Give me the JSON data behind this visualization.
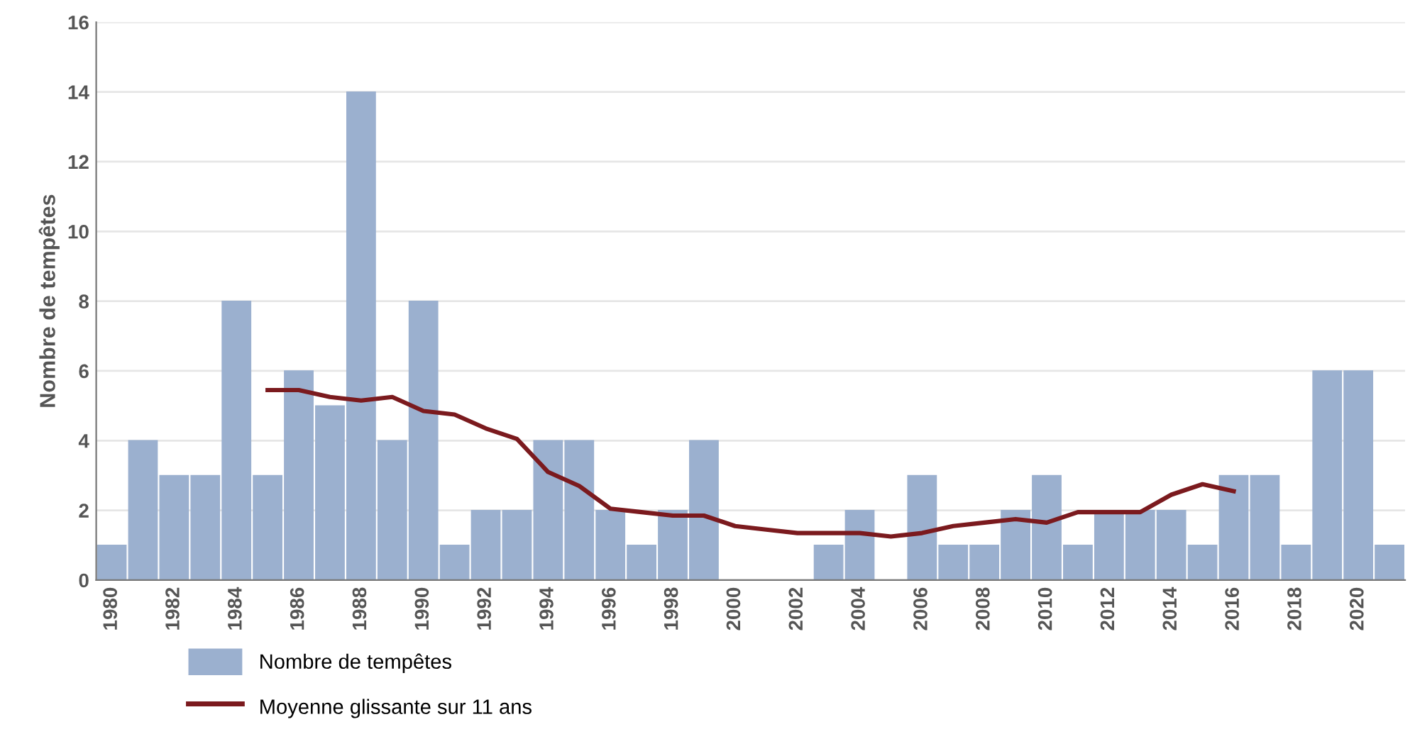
{
  "chart_data": {
    "type": "bar",
    "ylabel": "Nombre de tempêtes",
    "categories": [
      "1980",
      null,
      "1982",
      null,
      "1984",
      null,
      "1986",
      null,
      "1988",
      null,
      "1990",
      null,
      "1992",
      null,
      "1994",
      null,
      "1996",
      null,
      "1998",
      null,
      "2000",
      null,
      "2002",
      null,
      "2004",
      null,
      "2006",
      null,
      "2008",
      null,
      "2010",
      null,
      "2012",
      null,
      "2014",
      null,
      "2016",
      null,
      "2018",
      null,
      "2020",
      null
    ],
    "series": [
      {
        "name": "Nombre de tempêtes",
        "color": "#9bb0cf",
        "values": [
          1,
          4,
          3,
          3,
          8,
          3,
          6,
          5,
          14,
          4,
          8,
          1,
          2,
          2,
          4,
          4,
          2,
          1,
          2,
          4,
          0,
          0,
          0,
          1,
          2,
          0,
          3,
          1,
          1,
          2,
          3,
          1,
          2,
          2,
          2,
          1,
          3,
          3,
          1,
          6,
          6,
          1
        ]
      },
      {
        "name": "Moyenne glissante sur 11 ans",
        "type": "line",
        "color": "#7b1a1e",
        "values": [
          null,
          null,
          null,
          null,
          null,
          5.45,
          5.45,
          5.25,
          5.15,
          5.25,
          4.85,
          4.75,
          4.35,
          4.05,
          3.1,
          2.7,
          2.05,
          1.95,
          1.85,
          1.85,
          1.55,
          1.45,
          1.35,
          1.35,
          1.35,
          1.25,
          1.35,
          1.55,
          1.65,
          1.75,
          1.65,
          1.95,
          1.95,
          1.95,
          2.45,
          2.75,
          2.55,
          null,
          null,
          null,
          null,
          null
        ]
      }
    ],
    "ylim": [
      0,
      16
    ],
    "yticks": [
      0,
      2,
      4,
      6,
      8,
      10,
      12,
      14,
      16
    ],
    "grid": "y",
    "legend": "bottom left",
    "marker": "none",
    "line_style": "solid"
  }
}
